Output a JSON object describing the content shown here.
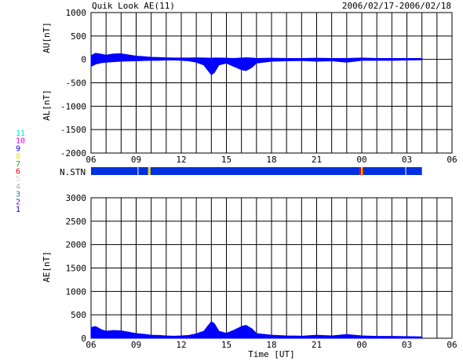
{
  "header": {
    "title": "Quik Look AE(11)",
    "date_range": "2006/02/17-2006/02/18"
  },
  "station_legend": [
    "11",
    "10",
    "9",
    "8",
    "7",
    "6",
    "5",
    "4",
    "3",
    "2",
    "1"
  ],
  "station_legend_colors": [
    "#00e5e5",
    "#e500e5",
    "#0000ff",
    "#e5e500",
    "#00c000",
    "#e00000",
    "#d8d8d8",
    "#b0b0b0",
    "#009090",
    "#a000a0",
    "#0000c0"
  ],
  "nstn_label": "N.STN",
  "colors": {
    "fill": "#0000ff",
    "grid": "#000000",
    "station_count_ok": "#0030e0",
    "station_count_yellow": "#f0e000",
    "station_count_red": "#e00000"
  },
  "chart_data": [
    {
      "type": "area",
      "name": "AU/AL panel",
      "ylabel_top": "AU[nT]",
      "ylabel_bottom": "AL[nT]",
      "ylim": [
        -2000,
        1000
      ],
      "yticks": [
        1000,
        500,
        0,
        -500,
        -1000,
        -1500,
        -2000
      ],
      "xlim": [
        6,
        30
      ],
      "xtick_labels": [
        "06",
        "09",
        "12",
        "15",
        "18",
        "21",
        "00",
        "03",
        "06"
      ],
      "grid": true,
      "series": [
        {
          "x": [
            6,
            6.3,
            6.7,
            7,
            7.5,
            8,
            8.5,
            9,
            9.5,
            10,
            10.5,
            11,
            11.5,
            12,
            12.5,
            13,
            13.5,
            14,
            14.2,
            14.5,
            15,
            15.5,
            16,
            16.3,
            16.7,
            17,
            18,
            19,
            20,
            21,
            22,
            23,
            24,
            25,
            26,
            27,
            28
          ],
          "values": [
            80,
            130,
            110,
            90,
            115,
            120,
            95,
            70,
            60,
            45,
            40,
            35,
            30,
            30,
            30,
            35,
            30,
            25,
            30,
            30,
            25,
            20,
            30,
            35,
            30,
            20,
            25,
            20,
            20,
            25,
            20,
            20,
            30,
            20,
            20,
            20,
            20
          ]
        },
        {
          "x": [
            6,
            6.3,
            6.7,
            7,
            7.5,
            8,
            8.5,
            9,
            9.5,
            10,
            10.5,
            11,
            11.5,
            12,
            12.5,
            13,
            13.5,
            14,
            14.2,
            14.5,
            15,
            15.5,
            16,
            16.3,
            16.7,
            17,
            18,
            19,
            20,
            21,
            22,
            23,
            24,
            25,
            26,
            27,
            28
          ],
          "values": [
            -150,
            -100,
            -70,
            -60,
            -50,
            -40,
            -35,
            -30,
            -25,
            -20,
            -20,
            -15,
            -15,
            -20,
            -30,
            -60,
            -120,
            -330,
            -280,
            -120,
            -80,
            -150,
            -220,
            -240,
            -170,
            -80,
            -40,
            -30,
            -25,
            -40,
            -30,
            -60,
            -20,
            -20,
            -20,
            -15,
            -10
          ]
        }
      ]
    },
    {
      "type": "area",
      "name": "AE panel",
      "ylabel": "AE[nT]",
      "xlabel": "Time [UT]",
      "ylim": [
        0,
        3000
      ],
      "yticks": [
        3000,
        2500,
        2000,
        1500,
        1000,
        500,
        0
      ],
      "xlim": [
        6,
        30
      ],
      "xtick_labels": [
        "06",
        "09",
        "12",
        "15",
        "18",
        "21",
        "00",
        "03",
        "06"
      ],
      "grid": true,
      "series": [
        {
          "x": [
            6,
            6.3,
            6.7,
            7,
            7.5,
            8,
            8.5,
            9,
            9.5,
            10,
            10.5,
            11,
            11.5,
            12,
            12.5,
            13,
            13.5,
            14,
            14.2,
            14.5,
            15,
            15.5,
            16,
            16.3,
            16.7,
            17,
            18,
            19,
            20,
            21,
            22,
            23,
            24,
            25,
            26,
            27,
            28
          ],
          "values": [
            230,
            250,
            180,
            150,
            165,
            160,
            130,
            100,
            85,
            65,
            60,
            50,
            45,
            50,
            60,
            95,
            150,
            355,
            310,
            150,
            105,
            170,
            250,
            275,
            200,
            100,
            65,
            50,
            45,
            65,
            50,
            80,
            50,
            40,
            40,
            35,
            30
          ]
        }
      ]
    },
    {
      "type": "bar",
      "name": "N.STN",
      "xlim": [
        6,
        30
      ],
      "segments": [
        {
          "from": 6,
          "to": 9.1,
          "status": "ok"
        },
        {
          "from": 9.1,
          "to": 9.15,
          "status": "gap"
        },
        {
          "from": 9.15,
          "to": 9.8,
          "status": "ok"
        },
        {
          "from": 9.8,
          "to": 9.95,
          "status": "yellow"
        },
        {
          "from": 9.95,
          "to": 23.85,
          "status": "ok"
        },
        {
          "from": 23.85,
          "to": 23.95,
          "status": "red"
        },
        {
          "from": 23.95,
          "to": 24.05,
          "status": "yellow"
        },
        {
          "from": 24.05,
          "to": 24.15,
          "status": "red"
        },
        {
          "from": 24.15,
          "to": 26.9,
          "status": "ok"
        },
        {
          "from": 26.9,
          "to": 26.95,
          "status": "gap"
        },
        {
          "from": 26.95,
          "to": 28,
          "status": "ok"
        }
      ]
    }
  ]
}
